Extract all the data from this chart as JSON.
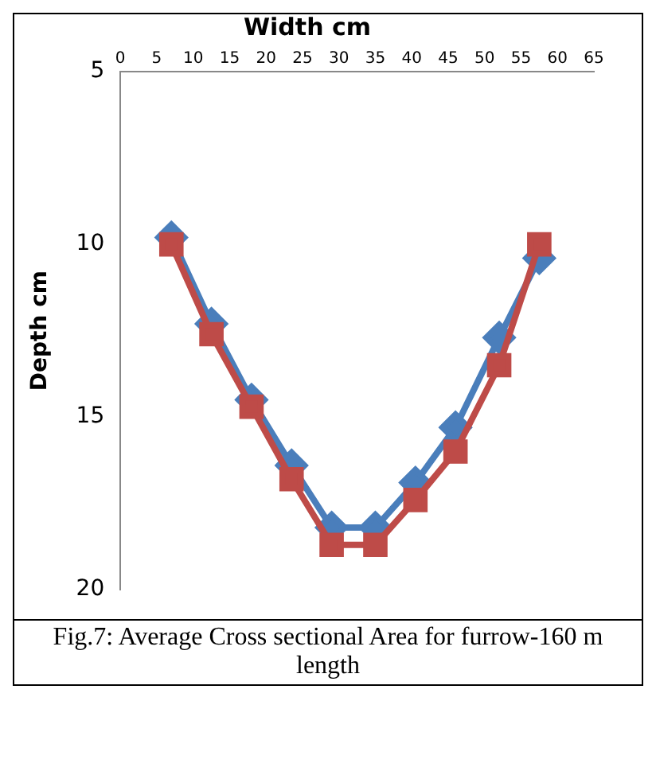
{
  "chart_data": {
    "type": "line",
    "title": "Width cm",
    "ylabel": "Depth cm",
    "xlim": [
      0,
      65
    ],
    "xticks": [
      0,
      5,
      10,
      15,
      20,
      25,
      30,
      35,
      40,
      45,
      50,
      55,
      60,
      65
    ],
    "ylim": [
      20,
      5
    ],
    "yticks": [
      5,
      10,
      15,
      20
    ],
    "grid": false,
    "legend": false,
    "series": [
      {
        "color": "#4a7ebb",
        "marker": "diamond",
        "x": [
          7,
          12.5,
          18,
          23.5,
          29,
          35,
          40.5,
          46,
          52,
          57.5
        ],
        "values": [
          9.8,
          12.3,
          14.5,
          16.4,
          18.2,
          18.2,
          16.9,
          15.3,
          12.7,
          10.4
        ]
      },
      {
        "color": "#be4b48",
        "marker": "square",
        "x": [
          7,
          12.5,
          18,
          23.5,
          29,
          35,
          40.5,
          46,
          52,
          57.5
        ],
        "values": [
          10,
          12.6,
          14.7,
          16.8,
          18.7,
          18.7,
          17.4,
          16,
          13.5,
          10
        ]
      }
    ],
    "annotations": [
      "Fig.7: Average Cross sectional Area for furrow-160 m length"
    ]
  }
}
